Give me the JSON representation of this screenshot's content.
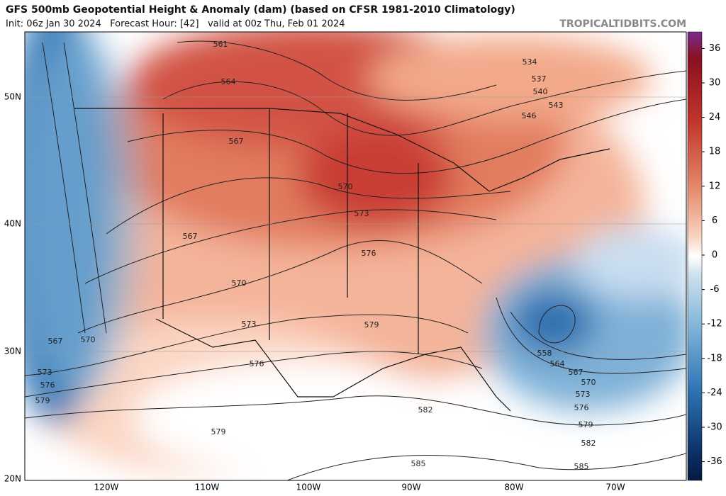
{
  "header": {
    "title": "GFS 500mb Geopotential Height & Anomaly (dam) (based on CFSR 1981-2010 Climatology)",
    "subtitle": "Init: 06z Jan 30 2024   Forecast Hour: [42]   valid at 00z Thu, Feb 01 2024",
    "watermark": "TROPICALTIDBITS.COM"
  },
  "map": {
    "latitude_labels": [
      "50N",
      "40N",
      "30N",
      "20N"
    ],
    "longitude_labels": [
      "120W",
      "110W",
      "100W",
      "90W",
      "80W",
      "70W"
    ],
    "contour_labels": [
      561,
      564,
      567,
      570,
      573,
      576,
      567,
      570,
      573,
      579,
      567,
      570,
      573,
      576,
      579,
      576,
      579,
      582,
      585,
      585,
      582,
      579,
      576,
      573,
      570,
      567,
      564,
      558,
      534,
      537,
      540,
      543,
      546
    ]
  },
  "colorbar": {
    "ticks": [
      36,
      30,
      24,
      18,
      12,
      6,
      0,
      -6,
      -12,
      -18,
      -24,
      -30,
      -36
    ]
  }
}
